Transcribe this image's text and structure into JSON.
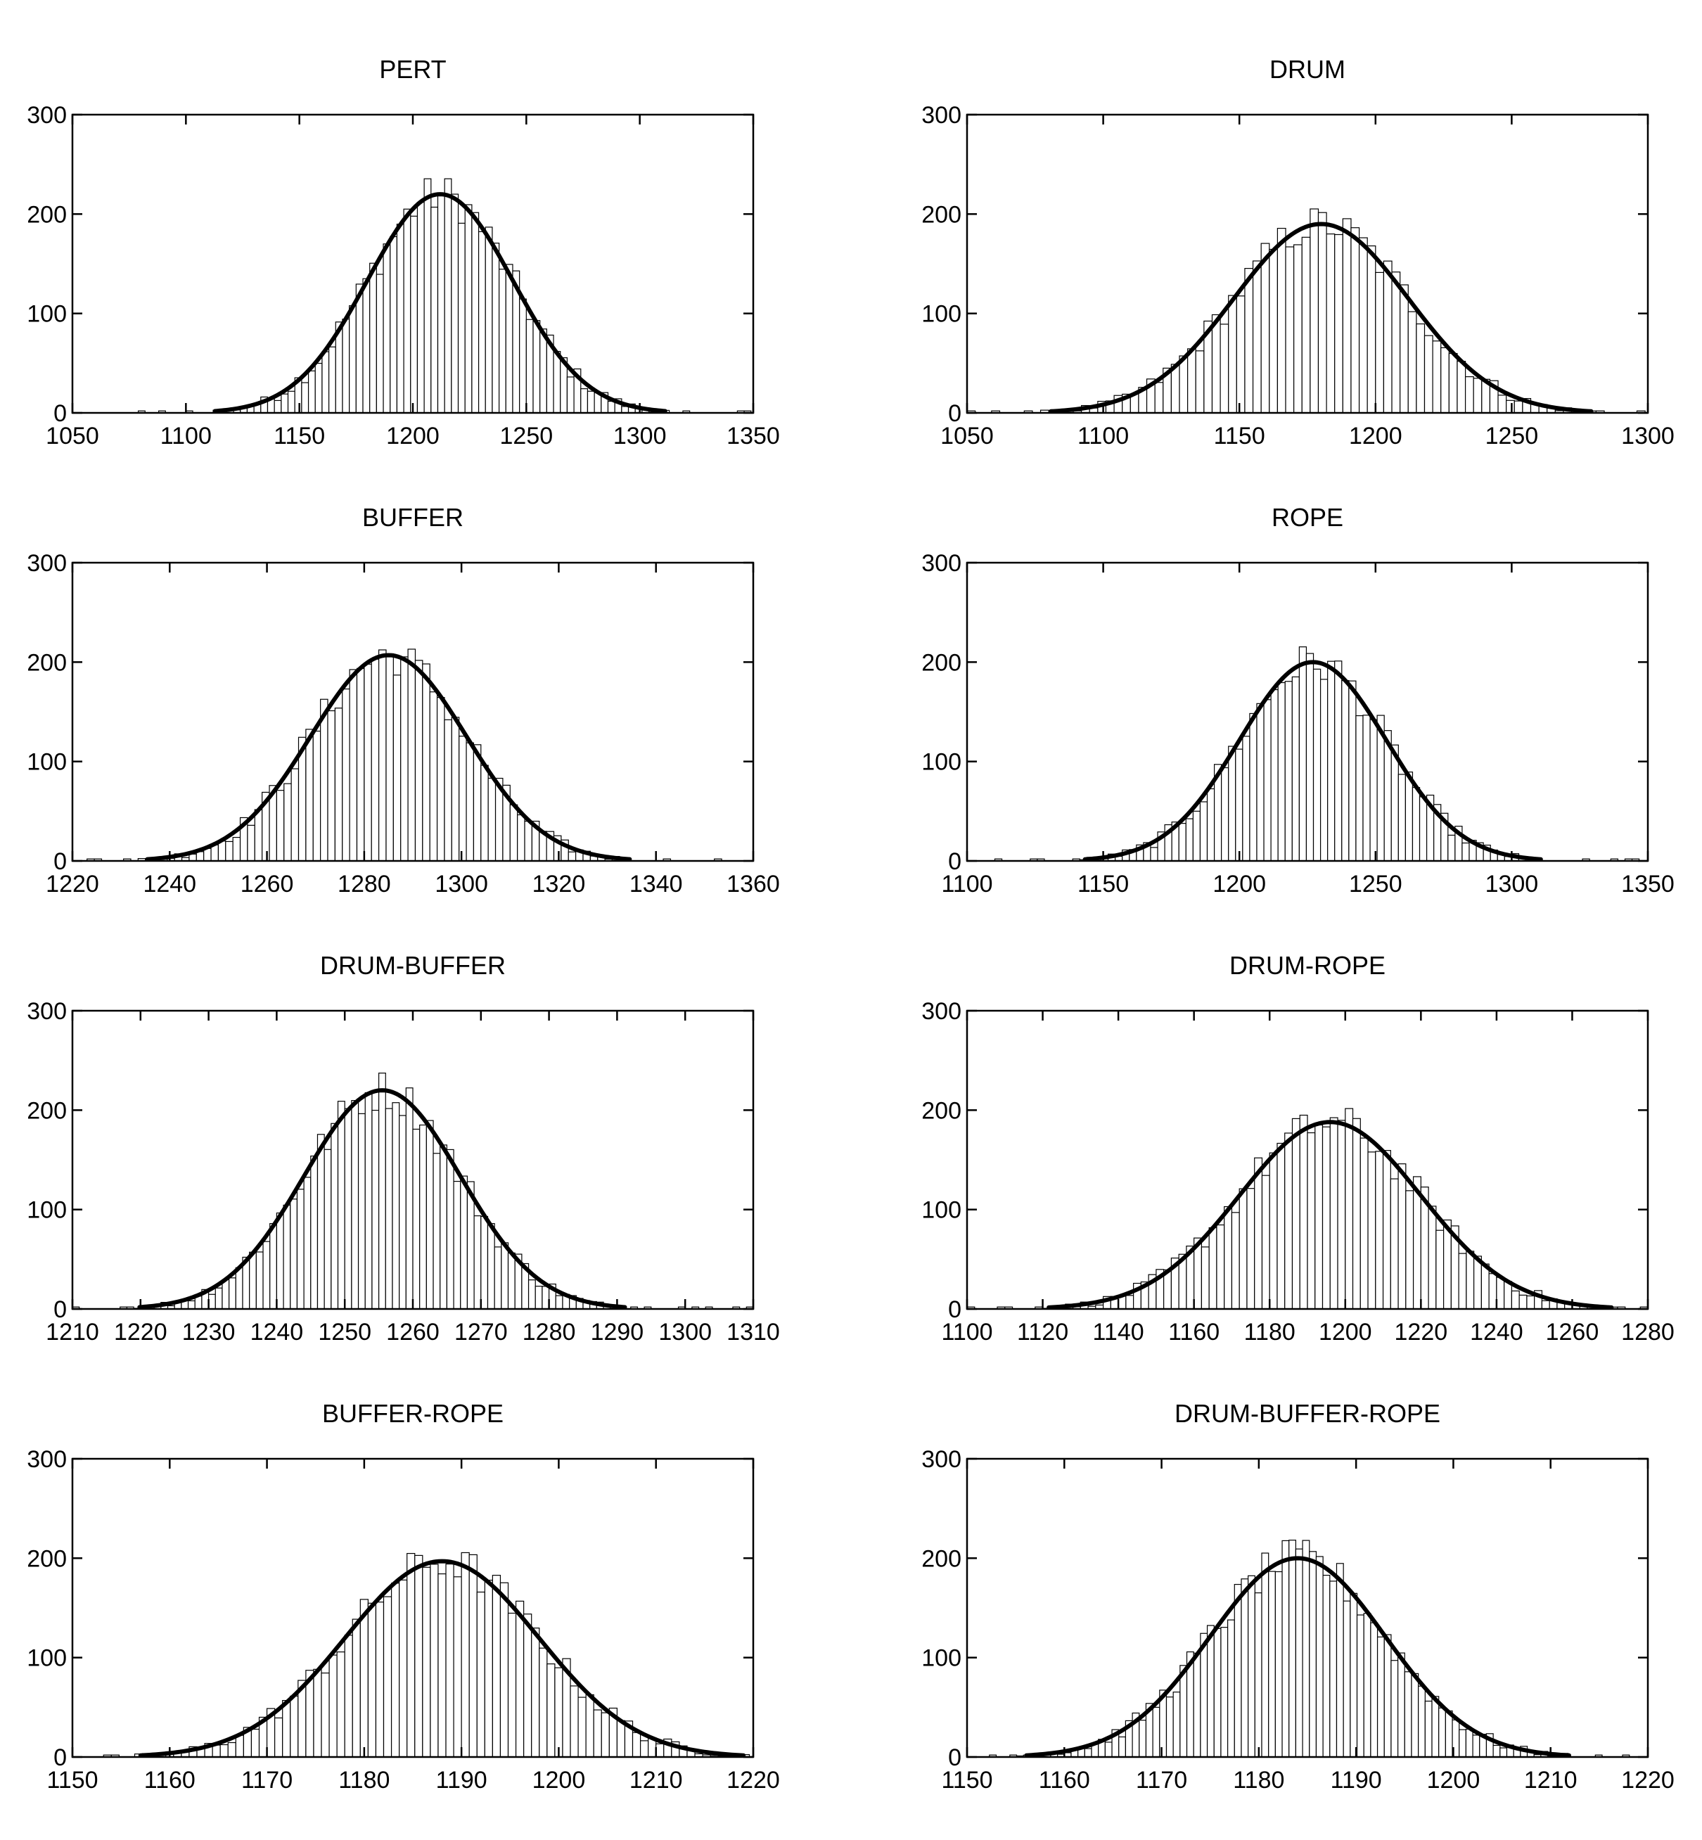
{
  "chart_data": [
    {
      "type": "bar",
      "title": "PERT",
      "xlim": [
        1050,
        1350
      ],
      "ylim": [
        0,
        300
      ],
      "xticks": [
        1050,
        1100,
        1150,
        1200,
        1250,
        1300,
        1350
      ],
      "yticks": [
        0,
        100,
        200,
        300
      ],
      "mean": 1212,
      "sd": 32,
      "peak": 220,
      "bin_width": 3
    },
    {
      "type": "bar",
      "title": "DRUM",
      "xlim": [
        1050,
        1300
      ],
      "ylim": [
        0,
        300
      ],
      "xticks": [
        1050,
        1100,
        1150,
        1200,
        1250,
        1300
      ],
      "yticks": [
        0,
        100,
        200,
        300
      ],
      "mean": 1180,
      "sd": 32,
      "peak": 190,
      "bin_width": 3
    },
    {
      "type": "bar",
      "title": "BUFFER",
      "xlim": [
        1220,
        1360
      ],
      "ylim": [
        0,
        300
      ],
      "xticks": [
        1220,
        1240,
        1260,
        1280,
        1300,
        1320,
        1340,
        1360
      ],
      "yticks": [
        0,
        100,
        200,
        300
      ],
      "mean": 1285,
      "sd": 16,
      "peak": 207,
      "bin_width": 1.5
    },
    {
      "type": "bar",
      "title": "ROPE",
      "xlim": [
        1100,
        1350
      ],
      "ylim": [
        0,
        300
      ],
      "xticks": [
        1100,
        1150,
        1200,
        1250,
        1300,
        1350
      ],
      "yticks": [
        0,
        100,
        200,
        300
      ],
      "mean": 1227,
      "sd": 27,
      "peak": 200,
      "bin_width": 2.6
    },
    {
      "type": "bar",
      "title": "DRUM-BUFFER",
      "xlim": [
        1210,
        1310
      ],
      "ylim": [
        0,
        300
      ],
      "xticks": [
        1210,
        1220,
        1230,
        1240,
        1250,
        1260,
        1270,
        1280,
        1290,
        1300,
        1310
      ],
      "yticks": [
        0,
        100,
        200,
        300
      ],
      "mean": 1255.5,
      "sd": 11.5,
      "peak": 220,
      "bin_width": 1
    },
    {
      "type": "bar",
      "title": "DRUM-ROPE",
      "xlim": [
        1100,
        1280
      ],
      "ylim": [
        0,
        300
      ],
      "xticks": [
        1100,
        1120,
        1140,
        1160,
        1180,
        1200,
        1220,
        1240,
        1260,
        1280
      ],
      "yticks": [
        0,
        100,
        200,
        300
      ],
      "mean": 1196,
      "sd": 24,
      "peak": 188,
      "bin_width": 2
    },
    {
      "type": "bar",
      "title": "BUFFER-ROPE",
      "xlim": [
        1150,
        1220
      ],
      "ylim": [
        0,
        300
      ],
      "xticks": [
        1150,
        1160,
        1170,
        1180,
        1190,
        1200,
        1210,
        1220
      ],
      "yticks": [
        0,
        100,
        200,
        300
      ],
      "mean": 1188,
      "sd": 10,
      "peak": 197,
      "bin_width": 0.8
    },
    {
      "type": "bar",
      "title": "DRUM-BUFFER-ROPE",
      "xlim": [
        1150,
        1220
      ],
      "ylim": [
        0,
        300
      ],
      "xticks": [
        1150,
        1160,
        1170,
        1180,
        1190,
        1200,
        1210,
        1220
      ],
      "yticks": [
        0,
        100,
        200,
        300
      ],
      "mean": 1184,
      "sd": 9,
      "peak": 200,
      "bin_width": 0.7
    }
  ]
}
